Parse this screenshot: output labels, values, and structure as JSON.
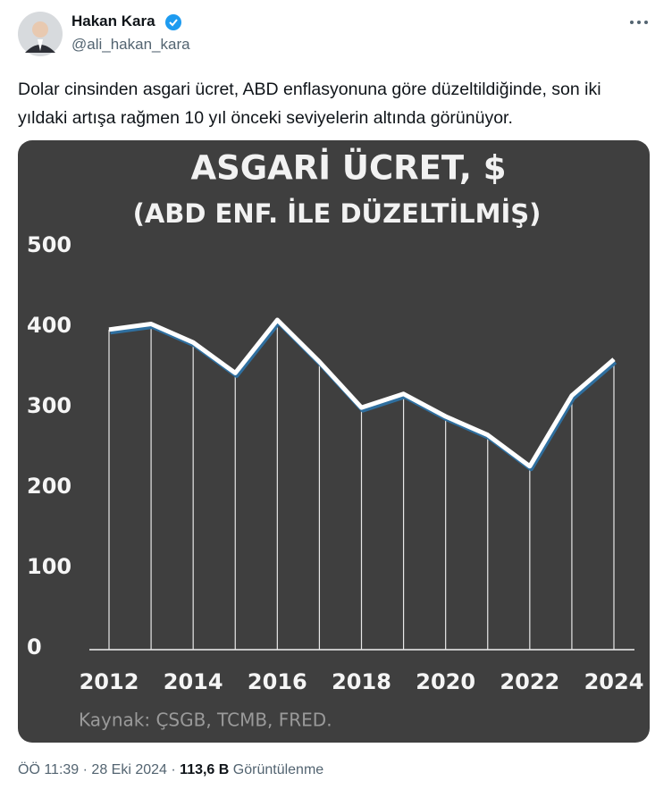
{
  "author": {
    "name": "Hakan Kara",
    "handle": "@ali_hakan_kara"
  },
  "tweet_text": "Dolar cinsinden asgari ücret, ABD enflasyonuna göre düzeltildiğinde, son iki yıldaki artışa rağmen 10 yıl önceki seviyelerin altında görünüyor.",
  "chart_data": {
    "type": "line",
    "title": "ASGARİ ÜCRET, $",
    "subtitle": "(ABD ENF. İLE DÜZELTİLMİŞ)",
    "x": [
      2012,
      2013,
      2014,
      2015,
      2016,
      2017,
      2018,
      2019,
      2020,
      2021,
      2022,
      2023,
      2024
    ],
    "values": [
      398,
      405,
      382,
      344,
      410,
      358,
      301,
      318,
      290,
      267,
      228,
      316,
      361
    ],
    "color": "#ffffff",
    "shadow_color": "#2f6f9f",
    "xlim": [
      2012,
      2024
    ],
    "xticks": [
      2012,
      2014,
      2016,
      2018,
      2020,
      2022,
      2024
    ],
    "ylim": [
      0,
      500
    ],
    "yticks": [
      0,
      100,
      200,
      300,
      400,
      500
    ],
    "source": "Kaynak: ÇSGB, TCMB, FRED."
  },
  "footer": {
    "time": "ÖÖ 11:39",
    "separator": "·",
    "date": "28 Eki 2024",
    "views": "113,6 B",
    "views_label": "Görüntülenme"
  }
}
